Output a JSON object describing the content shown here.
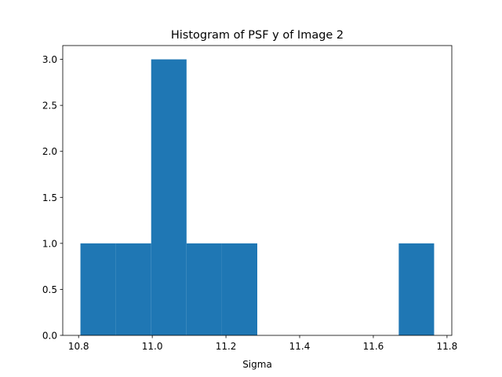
{
  "chart_data": {
    "type": "bar",
    "title": "Histogram of PSF y of Image 2",
    "xlabel": "Sigma",
    "ylabel": "",
    "bin_edges": [
      10.805,
      10.901,
      10.997,
      11.093,
      11.189,
      11.285,
      11.381,
      11.477,
      11.573,
      11.669,
      11.765
    ],
    "values": [
      1,
      1,
      3,
      1,
      1,
      0,
      0,
      0,
      0,
      1
    ],
    "xlim": [
      10.757,
      11.813
    ],
    "ylim": [
      0,
      3.15
    ],
    "xticks": [
      10.8,
      11.0,
      11.2,
      11.4,
      11.6,
      11.8
    ],
    "xtick_labels": [
      "10.8",
      "11.0",
      "11.2",
      "11.4",
      "11.6",
      "11.8"
    ],
    "yticks": [
      0.0,
      0.5,
      1.0,
      1.5,
      2.0,
      2.5,
      3.0
    ],
    "ytick_labels": [
      "0.0",
      "0.5",
      "1.0",
      "1.5",
      "2.0",
      "2.5",
      "3.0"
    ],
    "bar_color": "#1f77b4",
    "grid": false,
    "legend": "none"
  }
}
